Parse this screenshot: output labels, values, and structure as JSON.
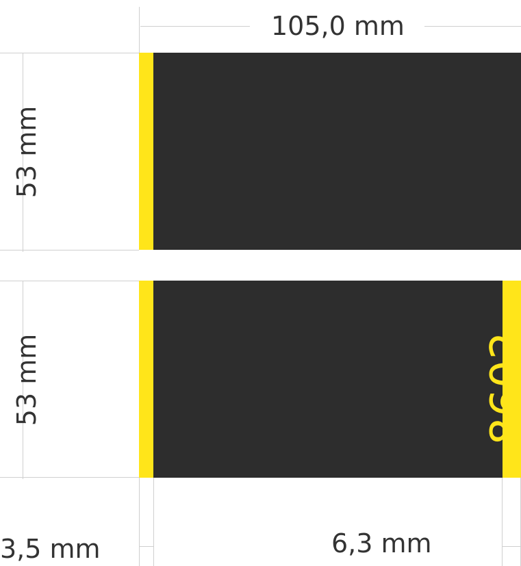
{
  "dimensions": {
    "width_label": "105,0 mm",
    "height_label_top": "53 mm",
    "height_label_bottom": "53 mm",
    "stripe_left_label": "3,5 mm",
    "stripe_right_label": "6,3 mm"
  },
  "panel": {
    "code": "8602"
  },
  "colors": {
    "panel_fill": "#2d2d2d",
    "stripe_fill": "#ffe51a",
    "dimension_line": "#cfcfcf",
    "text": "#333333"
  }
}
